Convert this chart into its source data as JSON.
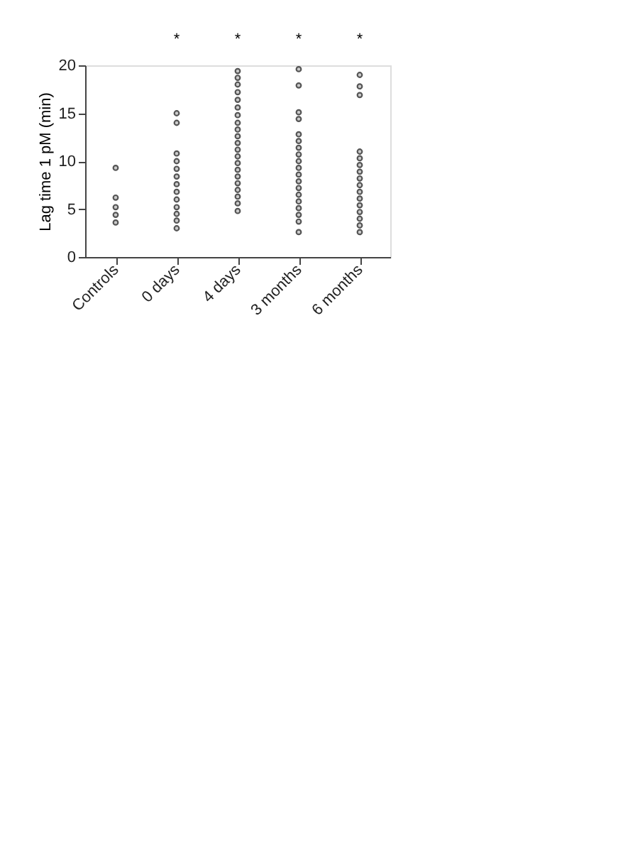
{
  "chart_data": {
    "type": "scatter",
    "ylabel": "Lag time 1 pM (min)",
    "categories": [
      "Controls",
      "0 days",
      "4 days",
      "3 months",
      "6 months"
    ],
    "ylim": [
      0,
      20
    ],
    "yticks": [
      0,
      5,
      10,
      15,
      20
    ],
    "grid": false,
    "marker": "circle",
    "legend": false,
    "series": [
      {
        "color": "#555555",
        "x": [
          "Controls",
          "Controls",
          "Controls",
          "Controls",
          "Controls"
        ],
        "values": [
          9.3,
          6.2,
          5.2,
          4.4,
          3.6
        ]
      },
      {
        "color": "#555555",
        "x": [
          "0 days",
          "0 days",
          "0 days",
          "0 days",
          "0 days",
          "0 days",
          "0 days",
          "0 days",
          "0 days",
          "0 days",
          "0 days",
          "0 days",
          "0 days"
        ],
        "values": [
          15,
          14,
          10.8,
          10,
          9.2,
          8.4,
          7.6,
          6.8,
          6,
          5.2,
          4.5,
          3.8,
          3.0
        ]
      },
      {
        "color": "#555555",
        "x": [
          "4 days",
          "4 days",
          "4 days",
          "4 days",
          "4 days",
          "4 days",
          "4 days",
          "4 days",
          "4 days",
          "4 days",
          "4 days",
          "4 days",
          "4 days",
          "4 days",
          "4 days",
          "4 days",
          "4 days",
          "4 days",
          "4 days",
          "4 days",
          "4 days"
        ],
        "values": [
          19.4,
          18.7,
          18.0,
          17.2,
          16.4,
          15.6,
          14.8,
          14.0,
          13.3,
          12.6,
          11.9,
          11.2,
          10.5,
          9.8,
          9.1,
          8.4,
          7.7,
          7.0,
          6.3,
          5.6,
          4.8
        ]
      },
      {
        "color": "#555555",
        "x": [
          "3 months",
          "3 months",
          "3 months",
          "3 months",
          "3 months",
          "3 months",
          "3 months",
          "3 months",
          "3 months",
          "3 months",
          "3 months",
          "3 months",
          "3 months",
          "3 months",
          "3 months",
          "3 months",
          "3 months",
          "3 months",
          "3 months"
        ],
        "values": [
          19.6,
          17.9,
          15.1,
          14.4,
          12.8,
          12.1,
          11.4,
          10.7,
          10,
          9.3,
          8.6,
          7.9,
          7.2,
          6.5,
          5.8,
          5.1,
          4.4,
          3.7,
          2.6
        ]
      },
      {
        "color": "#555555",
        "x": [
          "6 months",
          "6 months",
          "6 months",
          "6 months",
          "6 months",
          "6 months",
          "6 months",
          "6 months",
          "6 months",
          "6 months",
          "6 months",
          "6 months",
          "6 months",
          "6 months",
          "6 months",
          "6 months"
        ],
        "values": [
          19.0,
          17.8,
          16.9,
          11.0,
          10.3,
          9.6,
          8.9,
          8.2,
          7.5,
          6.8,
          6.1,
          5.4,
          4.7,
          4.0,
          3.3,
          2.6
        ]
      }
    ],
    "annotations": [
      "*",
      "*",
      "*",
      "*"
    ]
  }
}
